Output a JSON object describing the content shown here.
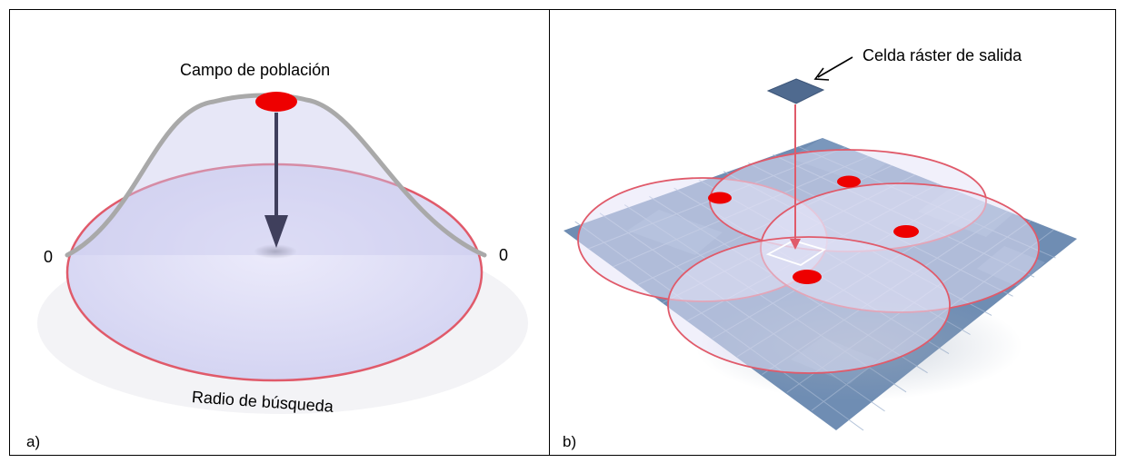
{
  "panel_a": {
    "corner_label": "a)",
    "peak_label": "Campo de población",
    "zero_left": "0",
    "zero_right": "0",
    "radius_label": "Radio de búsqueda"
  },
  "panel_b": {
    "corner_label": "b)",
    "cell_label": "Celda ráster de salida"
  },
  "colors": {
    "circle_stroke": "#e05a6a",
    "point_fill": "#ee0000",
    "disc_fill": "#dcdcf5",
    "curve": "#a9a9a9",
    "arrow": "#3f3f5c",
    "grid_fill": "#6f8db3",
    "output_cell": "#4f6a8f"
  }
}
